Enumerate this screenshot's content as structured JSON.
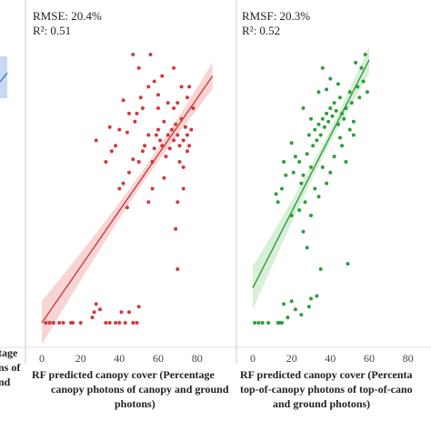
{
  "chart_data": [
    {
      "type": "scatter",
      "title": "",
      "partial": true,
      "xlabel_lines": [
        "tage",
        "ns of",
        "nd"
      ],
      "ylabel": "",
      "color": "#3b6fd4",
      "fit_line": {
        "x": [
          88,
          92
        ],
        "y": [
          80,
          84
        ]
      },
      "points": []
    },
    {
      "type": "scatter",
      "title": "",
      "stats": [
        "RMSE: 20.4%",
        "R²: 0.51"
      ],
      "xlabel_lines": [
        "RF predicted canopy cover (Percentage",
        "canopy photons of canopy and ground",
        "photons)"
      ],
      "ylabel": "",
      "x_ticks": [
        "0",
        "20",
        "40",
        "60",
        "80"
      ],
      "xlim": [
        0,
        90
      ],
      "ylim": [
        0,
        100
      ],
      "color": "#d03a3a",
      "fill_color": "#f2b3b3",
      "fit_line": {
        "x": [
          0,
          88
        ],
        "y": [
          0,
          92
        ]
      },
      "points": [
        [
          2,
          0
        ],
        [
          4,
          0
        ],
        [
          6,
          0
        ],
        [
          9,
          0
        ],
        [
          11,
          0
        ],
        [
          16,
          0
        ],
        [
          15,
          0
        ],
        [
          20,
          0
        ],
        [
          26,
          2
        ],
        [
          27,
          4
        ],
        [
          28,
          7
        ],
        [
          30,
          5
        ],
        [
          33,
          0
        ],
        [
          35,
          0
        ],
        [
          38,
          0
        ],
        [
          40,
          0
        ],
        [
          41,
          4
        ],
        [
          43,
          0
        ],
        [
          45,
          4
        ],
        [
          47,
          0
        ],
        [
          49,
          0
        ],
        [
          50,
          6
        ],
        [
          69,
          35
        ],
        [
          70,
          20
        ],
        [
          40,
          50
        ],
        [
          42,
          52
        ],
        [
          44,
          43
        ],
        [
          45,
          56
        ],
        [
          47,
          61
        ],
        [
          50,
          60
        ],
        [
          52,
          64
        ],
        [
          53,
          66
        ],
        [
          55,
          70
        ],
        [
          57,
          60
        ],
        [
          58,
          65
        ],
        [
          59,
          70
        ],
        [
          60,
          72
        ],
        [
          61,
          68
        ],
        [
          62,
          66
        ],
        [
          63,
          75
        ],
        [
          64,
          62
        ],
        [
          65,
          70
        ],
        [
          66,
          65
        ],
        [
          67,
          72
        ],
        [
          68,
          68
        ],
        [
          69,
          74
        ],
        [
          70,
          70
        ],
        [
          71,
          66
        ],
        [
          72,
          76
        ],
        [
          73,
          68
        ],
        [
          74,
          73
        ],
        [
          75,
          70
        ],
        [
          71,
          60
        ],
        [
          73,
          58
        ],
        [
          75,
          64
        ],
        [
          76,
          66
        ],
        [
          77,
          72
        ],
        [
          68,
          80
        ],
        [
          65,
          82
        ],
        [
          60,
          85
        ],
        [
          55,
          88
        ],
        [
          58,
          90
        ],
        [
          62,
          92
        ],
        [
          50,
          95
        ],
        [
          47,
          100
        ],
        [
          56,
          100
        ],
        [
          68,
          95
        ],
        [
          72,
          88
        ],
        [
          75,
          84
        ],
        [
          78,
          80
        ],
        [
          76,
          88
        ],
        [
          70,
          82
        ],
        [
          28,
          68
        ],
        [
          33,
          60
        ],
        [
          35,
          73
        ],
        [
          36,
          64
        ],
        [
          38,
          66
        ],
        [
          40,
          72
        ],
        [
          44,
          71
        ],
        [
          48,
          75
        ],
        [
          49,
          78
        ],
        [
          52,
          80
        ],
        [
          51,
          84
        ],
        [
          63,
          54
        ],
        [
          73,
          50
        ],
        [
          70,
          45
        ],
        [
          55,
          45
        ],
        [
          57,
          50
        ],
        [
          42,
          83
        ],
        [
          45,
          78
        ],
        [
          60,
          80
        ]
      ]
    },
    {
      "type": "scatter",
      "title": "",
      "stats": [
        "RMSF: 20.3%",
        "R²: 0.52"
      ],
      "xlabel_lines": [
        "RF predicted canopy cover (Percenta",
        "top-of-canopy photons of top-of-cano",
        "and ground photons)"
      ],
      "ylabel": "",
      "x_ticks": [
        "0",
        "20",
        "40",
        "60",
        "80"
      ],
      "xlim": [
        0,
        90
      ],
      "ylim": [
        0,
        100
      ],
      "color": "#2e9e3a",
      "fill_color": "#b8e2b8",
      "fit_line": {
        "x": [
          0,
          60
        ],
        "y": [
          13,
          98
        ]
      },
      "points": [
        [
          1,
          0
        ],
        [
          3,
          0
        ],
        [
          5,
          0
        ],
        [
          8,
          0
        ],
        [
          13,
          0
        ],
        [
          14,
          0
        ],
        [
          15,
          0
        ],
        [
          18,
          2
        ],
        [
          22,
          5
        ],
        [
          25,
          3
        ],
        [
          29,
          6
        ],
        [
          30,
          9
        ],
        [
          20,
          8
        ],
        [
          16,
          7
        ],
        [
          33,
          10
        ],
        [
          49,
          22
        ],
        [
          35,
          20
        ],
        [
          13,
          45
        ],
        [
          15,
          50
        ],
        [
          12,
          48
        ],
        [
          16,
          60
        ],
        [
          17,
          55
        ],
        [
          20,
          67
        ],
        [
          21,
          56
        ],
        [
          22,
          62
        ],
        [
          24,
          60
        ],
        [
          25,
          52
        ],
        [
          26,
          55
        ],
        [
          27,
          45
        ],
        [
          28,
          63
        ],
        [
          29,
          70
        ],
        [
          30,
          58
        ],
        [
          31,
          66
        ],
        [
          32,
          72
        ],
        [
          33,
          68
        ],
        [
          34,
          74
        ],
        [
          35,
          70
        ],
        [
          36,
          76
        ],
        [
          37,
          73
        ],
        [
          38,
          78
        ],
        [
          39,
          75
        ],
        [
          40,
          80
        ],
        [
          41,
          77
        ],
        [
          42,
          82
        ],
        [
          43,
          79
        ],
        [
          44,
          74
        ],
        [
          45,
          84
        ],
        [
          46,
          78
        ],
        [
          47,
          76
        ],
        [
          48,
          80
        ],
        [
          50,
          86
        ],
        [
          51,
          82
        ],
        [
          52,
          75
        ],
        [
          54,
          88
        ],
        [
          55,
          84
        ],
        [
          57,
          90
        ],
        [
          59,
          86
        ],
        [
          56,
          95
        ],
        [
          53,
          97
        ],
        [
          58,
          100
        ],
        [
          44,
          89
        ],
        [
          40,
          91
        ],
        [
          38,
          87
        ],
        [
          36,
          95
        ],
        [
          42,
          62
        ],
        [
          46,
          66
        ],
        [
          30,
          40
        ],
        [
          34,
          47
        ],
        [
          38,
          52
        ],
        [
          40,
          56
        ],
        [
          26,
          34
        ],
        [
          28,
          28
        ],
        [
          48,
          60
        ],
        [
          20,
          40
        ],
        [
          24,
          42
        ],
        [
          32,
          50
        ],
        [
          36,
          58
        ],
        [
          30,
          76
        ],
        [
          26,
          80
        ],
        [
          34,
          86
        ],
        [
          45,
          69
        ],
        [
          50,
          72
        ],
        [
          52,
          70
        ]
      ]
    }
  ]
}
